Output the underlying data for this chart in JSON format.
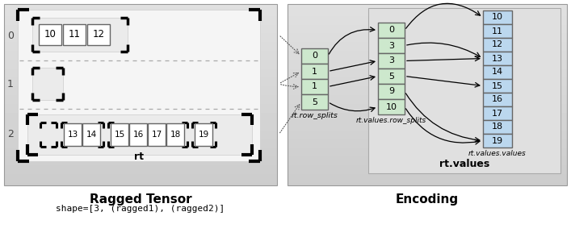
{
  "title_left": "Ragged Tensor",
  "subtitle_left": "shape=[3, (ragged1), (ragged2)]",
  "title_right": "Encoding",
  "rt_label": "rt",
  "rt_values_label": "rt.values",
  "row_splits_label": "rt.row_splits",
  "values_row_splits_label": "rt.values.row_splits",
  "values_values_label": "rt.values.values",
  "row_splits_values": [
    "0",
    "1",
    "1",
    "5"
  ],
  "values_row_splits_values": [
    "0",
    "3",
    "3",
    "5",
    "9",
    "10"
  ],
  "values_values": [
    "10",
    "11",
    "12",
    "13",
    "14",
    "15",
    "16",
    "17",
    "18",
    "19"
  ],
  "cell_color_green": "#cde8cd",
  "cell_color_blue": "#bbd7ee",
  "panel_bg_light": 0.88,
  "panel_bg_dark": 0.8
}
